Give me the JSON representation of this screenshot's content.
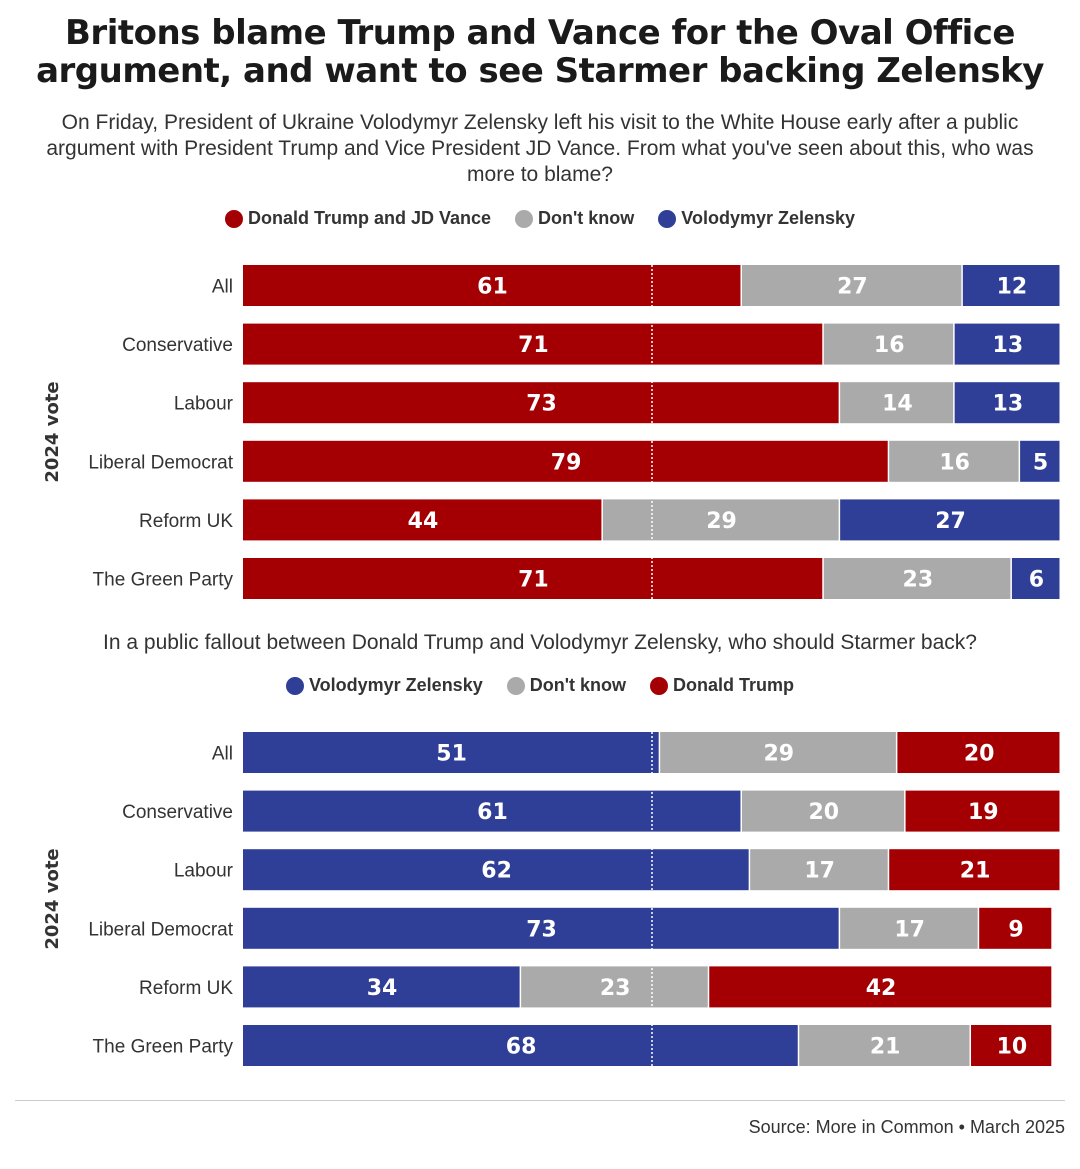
{
  "title": "Britons blame Trump and Vance for the Oval Office argument, and want to see Starmer backing Zelensky",
  "subtitle": "On Friday, President of Ukraine Volodymyr Zelensky left his visit to the White House early after a public argument with President Trump and Vice President JD Vance. From what you've seen about this, who was more to blame?",
  "question2": "In a public fallout between Donald Trump and Volodymyr Zelensky, who should Starmer back?",
  "colors": {
    "red": "#a40004",
    "grey": "#aaaaaa",
    "blue": "#2f3f97"
  },
  "source": "Source: More in Common • March 2025",
  "chart_data": [
    {
      "type": "bar",
      "orientation": "horizontal-stacked-100",
      "title": "From what you've seen about this, who was more to blame?",
      "ylabel": "2024 vote",
      "categories": [
        "All",
        "Conservative",
        "Labour",
        "Liberal Democrat",
        "Reform UK",
        "The Green Party"
      ],
      "series": [
        {
          "name": "Donald Trump and JD Vance",
          "color": "#a40004",
          "values": [
            61,
            71,
            73,
            79,
            44,
            71
          ]
        },
        {
          "name": "Don't know",
          "color": "#aaaaaa",
          "values": [
            27,
            16,
            14,
            16,
            29,
            23
          ]
        },
        {
          "name": "Volodymyr Zelensky",
          "color": "#2f3f97",
          "values": [
            12,
            13,
            13,
            5,
            27,
            6
          ]
        }
      ],
      "xlim": [
        0,
        100
      ],
      "reference_line": 50
    },
    {
      "type": "bar",
      "orientation": "horizontal-stacked-100",
      "title": "In a public fallout between Donald Trump and Volodymyr Zelensky, who should Starmer back?",
      "ylabel": "2024 vote",
      "categories": [
        "All",
        "Conservative",
        "Labour",
        "Liberal Democrat",
        "Reform UK",
        "The Green Party"
      ],
      "series": [
        {
          "name": "Volodymyr Zelensky",
          "color": "#2f3f97",
          "values": [
            51,
            61,
            62,
            73,
            34,
            68
          ]
        },
        {
          "name": "Don't know",
          "color": "#aaaaaa",
          "values": [
            29,
            20,
            17,
            17,
            23,
            21
          ]
        },
        {
          "name": "Donald Trump",
          "color": "#a40004",
          "values": [
            20,
            19,
            21,
            9,
            42,
            10
          ]
        }
      ],
      "xlim": [
        0,
        100
      ],
      "reference_line": 50
    }
  ]
}
